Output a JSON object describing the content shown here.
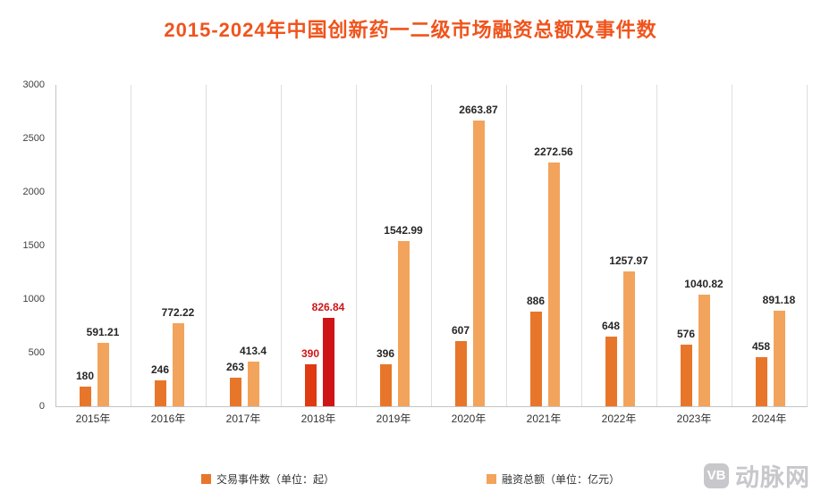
{
  "title": "2015-2024年中国创新药一二级市场融资总额及事件数",
  "watermark": {
    "logo_text": "VB",
    "name": "动脉网"
  },
  "chart_data": {
    "type": "bar",
    "title": "2015-2024年中国创新药一二级市场融资总额及事件数",
    "categories": [
      "2015年",
      "2016年",
      "2017年",
      "2018年",
      "2019年",
      "2020年",
      "2021年",
      "2022年",
      "2023年",
      "2024年"
    ],
    "series": [
      {
        "key": "events",
        "name": "交易事件数（单位：起）",
        "color": "#e8762a",
        "highlight_color": "#e03a12",
        "values": [
          180,
          246,
          263,
          390,
          396,
          607,
          886,
          648,
          576,
          458
        ],
        "labels": [
          "180",
          "246",
          "263",
          "390",
          "396",
          "607",
          "886",
          "648",
          "576",
          "458"
        ]
      },
      {
        "key": "funding",
        "name": "融资总额（单位：亿元）",
        "color": "#f2a45c",
        "highlight_color": "#cf1418",
        "values": [
          591.21,
          772.22,
          413.4,
          826.84,
          1542.99,
          2663.87,
          2272.56,
          1257.97,
          1040.82,
          891.18
        ],
        "labels": [
          "591.21",
          "772.22",
          "413.4",
          "826.84",
          "1542.99",
          "2663.87",
          "2272.56",
          "1257.97",
          "1040.82",
          "891.18"
        ]
      }
    ],
    "highlight_index": 3,
    "highlight_label_color": "#cf1418",
    "ylim": [
      0,
      3000
    ],
    "yticks": [
      "0",
      "500",
      "1000",
      "1500",
      "2000",
      "2500",
      "3000"
    ],
    "grid": "vertical-only",
    "legend_position": "bottom"
  }
}
